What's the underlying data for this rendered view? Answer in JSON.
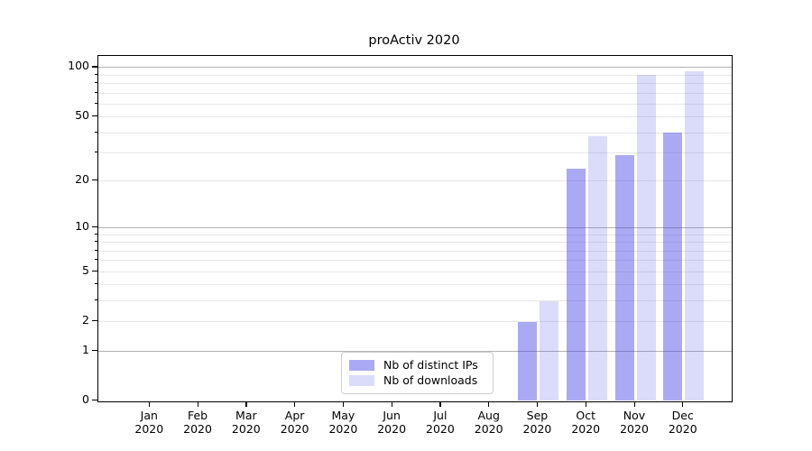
{
  "chart_data": {
    "type": "bar",
    "title": "proActiv 2020",
    "categories": [
      "Jan",
      "Feb",
      "Mar",
      "Apr",
      "May",
      "Jun",
      "Jul",
      "Aug",
      "Sep",
      "Oct",
      "Nov",
      "Dec"
    ],
    "category_year": "2020",
    "series": [
      {
        "name": "Nb of distinct IPs",
        "color": "rgba(62,62,230,0.44)",
        "values": [
          0,
          0,
          0,
          0,
          0,
          0,
          0,
          0,
          2,
          24,
          29,
          40
        ]
      },
      {
        "name": "Nb of downloads",
        "color": "rgba(62,62,230,0.19)",
        "values": [
          0,
          0,
          0,
          0,
          0,
          0,
          0,
          0,
          3,
          38,
          90,
          95
        ]
      }
    ],
    "yscale": "log1p",
    "yticks_labeled": [
      0,
      1,
      2,
      5,
      10,
      20,
      50,
      100
    ],
    "yticks_minor": [
      3,
      4,
      6,
      7,
      8,
      9,
      30,
      40,
      60,
      70,
      80,
      90
    ],
    "grid_major_values": [
      1,
      10,
      100
    ],
    "ylim": [
      0,
      119
    ],
    "xlabel": "",
    "ylabel": "",
    "grid": "both",
    "legend_position": "lower center inside"
  }
}
